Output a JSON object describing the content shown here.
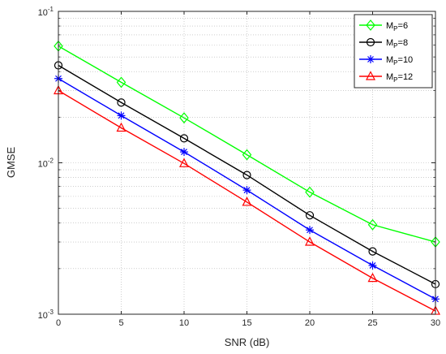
{
  "chart_data": {
    "type": "line",
    "x": [
      0,
      5,
      10,
      15,
      20,
      25,
      30
    ],
    "xlabel": "SNR (dB)",
    "ylabel": "GMSE",
    "xlim": [
      0,
      30
    ],
    "ylim": [
      0.001,
      0.1
    ],
    "yscale": "log",
    "grid": true,
    "legend_position": "top-right",
    "x_ticks": [
      "0",
      "5",
      "10",
      "15",
      "20",
      "25",
      "30"
    ],
    "y_ticks": [
      {
        "value": 0.1,
        "base": "10",
        "exp": "-1"
      },
      {
        "value": 0.01,
        "base": "10",
        "exp": "-2"
      },
      {
        "value": 0.001,
        "base": "10",
        "exp": "-3"
      }
    ],
    "series": [
      {
        "base": "M",
        "sub": "P",
        "suffix": "=6",
        "color": "#00ff00",
        "marker": "diamond",
        "values": [
          0.059,
          0.034,
          0.0198,
          0.0113,
          0.0064,
          0.0039,
          0.003
        ]
      },
      {
        "base": "M",
        "sub": "P",
        "suffix": "=8",
        "color": "#000000",
        "marker": "circle",
        "values": [
          0.044,
          0.025,
          0.0145,
          0.0083,
          0.0045,
          0.0026,
          0.00158
        ]
      },
      {
        "base": "M",
        "sub": "P",
        "suffix": "=10",
        "color": "#0000ff",
        "marker": "asterisk",
        "values": [
          0.036,
          0.0205,
          0.0118,
          0.0066,
          0.0036,
          0.0021,
          0.00126
        ]
      },
      {
        "base": "M",
        "sub": "P",
        "suffix": "=12",
        "color": "#ff0000",
        "marker": "triangle",
        "values": [
          0.03,
          0.017,
          0.0099,
          0.0055,
          0.003,
          0.00173,
          0.00105
        ]
      }
    ]
  }
}
